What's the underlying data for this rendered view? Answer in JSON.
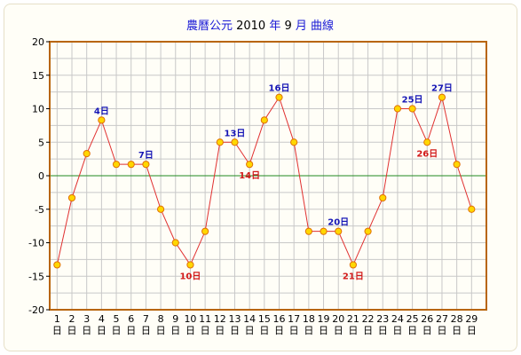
{
  "chart_data": {
    "type": "line",
    "title_parts": [
      {
        "text": "農曆公元",
        "color": "#1a1ad6"
      },
      {
        "text": "2010",
        "color": "#000000"
      },
      {
        "text": "年",
        "color": "#1a1ad6"
      },
      {
        "text": "9",
        "color": "#000000"
      },
      {
        "text": "月 曲線",
        "color": "#1a1ad6"
      }
    ],
    "ylim": [
      -20,
      20
    ],
    "yticks": [
      "20",
      "15",
      "10",
      "5",
      "0",
      "-5",
      "-10",
      "-15",
      "-20"
    ],
    "ytick_values": [
      20,
      15,
      10,
      5,
      0,
      -5,
      -10,
      -15,
      -20
    ],
    "x_suffix": "日",
    "x": [
      1,
      2,
      3,
      4,
      5,
      6,
      7,
      8,
      9,
      10,
      11,
      12,
      13,
      14,
      15,
      16,
      17,
      18,
      19,
      20,
      21,
      22,
      23,
      24,
      25,
      26,
      27,
      28,
      29
    ],
    "x_tick_labels": [
      "1",
      "2",
      "3",
      "4",
      "5",
      "6",
      "7",
      "8",
      "9",
      "10",
      "11",
      "12",
      "13",
      "14",
      "15",
      "16",
      "17",
      "18",
      "19",
      "20",
      "21",
      "22",
      "23",
      "24",
      "25",
      "26",
      "27",
      "28",
      "29"
    ],
    "values": [
      -13.3,
      -3.3,
      3.3,
      8.3,
      1.7,
      1.7,
      1.7,
      -5,
      -10,
      -13.3,
      -8.3,
      5,
      5,
      1.7,
      8.3,
      11.7,
      5,
      -8.3,
      -8.3,
      -8.3,
      -13.3,
      -8.3,
      -3.3,
      10,
      10,
      5,
      11.7,
      1.7,
      -5
    ],
    "line_color": "#e03030",
    "marker_fill": "#ffd700",
    "marker_stroke": "#e07000",
    "zero_line_color": "#228b22",
    "border_color": "#b8650a",
    "grid_color": "#c8c8c8",
    "grid": true,
    "annotations": [
      {
        "x": 4,
        "text": "4日",
        "kind": "high"
      },
      {
        "x": 7,
        "text": "7日",
        "kind": "high"
      },
      {
        "x": 10,
        "text": "10日",
        "kind": "low"
      },
      {
        "x": 13,
        "text": "13日",
        "kind": "high"
      },
      {
        "x": 14,
        "text": "14日",
        "kind": "low"
      },
      {
        "x": 16,
        "text": "16日",
        "kind": "high"
      },
      {
        "x": 20,
        "text": "20日",
        "kind": "high"
      },
      {
        "x": 21,
        "text": "21日",
        "kind": "low"
      },
      {
        "x": 25,
        "text": "25日",
        "kind": "high"
      },
      {
        "x": 26,
        "text": "26日",
        "kind": "low"
      },
      {
        "x": 27,
        "text": "27日",
        "kind": "high"
      }
    ]
  }
}
